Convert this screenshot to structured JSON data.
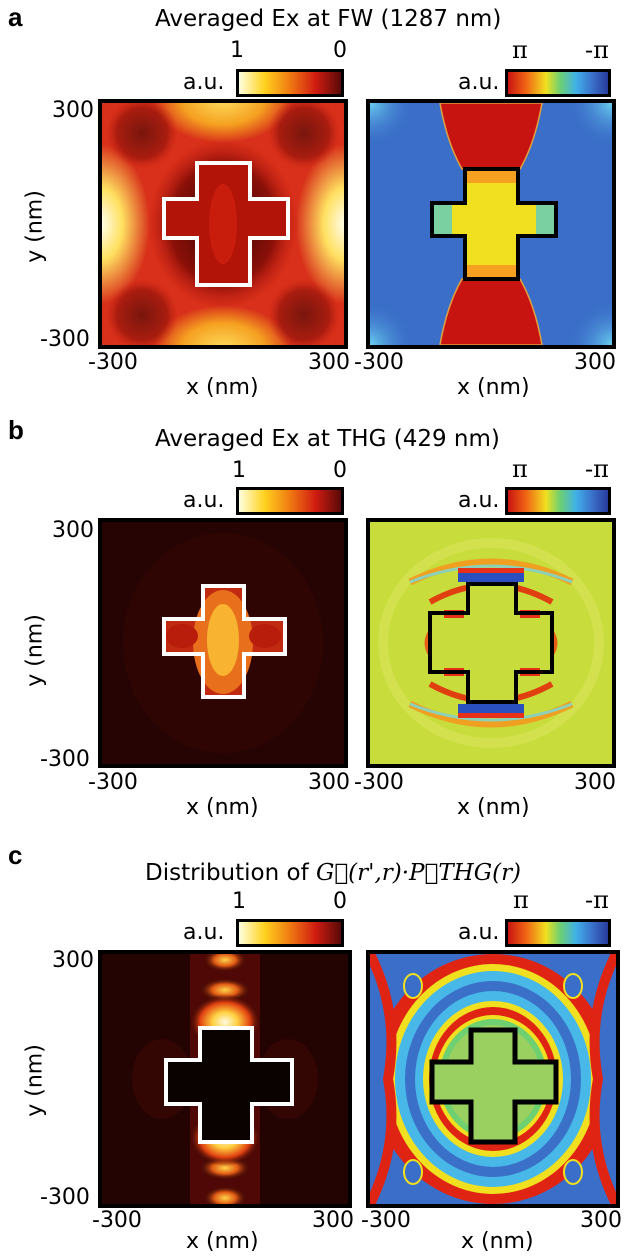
{
  "panels": [
    {
      "label": "a",
      "title": "Averaged Ex at FW (1287 nm)",
      "amp_bar": {
        "unit": "a.u.",
        "left": "1",
        "right": "0"
      },
      "phase_bar": {
        "unit": "a.u.",
        "left": "π",
        "right": "-π"
      },
      "y_label": "y (nm)",
      "y_ticks": [
        "300",
        "-300"
      ],
      "x_label": "x (nm)",
      "x_ticks": [
        "-300",
        "300"
      ]
    },
    {
      "label": "b",
      "title": "Averaged Ex at THG (429 nm)",
      "amp_bar": {
        "unit": "a.u.",
        "left": "1",
        "right": "0"
      },
      "phase_bar": {
        "unit": "a.u.",
        "left": "π",
        "right": "-π"
      },
      "y_label": "y (nm)",
      "y_ticks": [
        "300",
        "-300"
      ],
      "x_label": "x (nm)",
      "x_ticks": [
        "-300",
        "300"
      ]
    },
    {
      "label": "c",
      "title_prefix": "Distribution of",
      "title_math": "G⃡(r',r)·P⃗THG(r)",
      "amp_bar": {
        "unit": "a.u.",
        "left": "1",
        "right": "0"
      },
      "phase_bar": {
        "unit": "a.u.",
        "left": "π",
        "right": "-π"
      },
      "y_label": "y (nm)",
      "y_ticks": [
        "300",
        "-300"
      ],
      "x_label": "x (nm)",
      "x_ticks": [
        "-300",
        "300"
      ]
    }
  ],
  "colormaps": {
    "amplitude": [
      "#ffffe0",
      "#ffd21e",
      "#f07a12",
      "#d01c10",
      "#5a0a08"
    ],
    "phase": [
      "#c81410",
      "#f06414",
      "#f0e020",
      "#6ed070",
      "#40b0e8",
      "#3a6ec8",
      "#283c9c"
    ]
  }
}
